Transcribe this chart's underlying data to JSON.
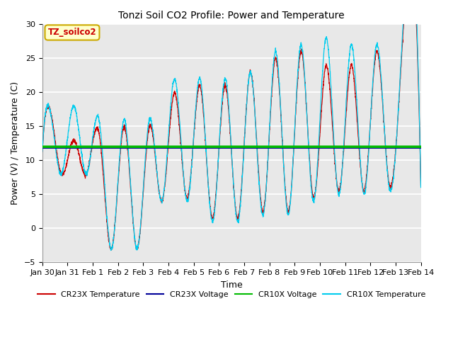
{
  "title": "Tonzi Soil CO2 Profile: Power and Temperature",
  "xlabel": "Time",
  "ylabel": "Power (V) / Temperature (C)",
  "ylim": [
    -5,
    30
  ],
  "xlim_days": [
    0,
    15
  ],
  "background_color": "#ffffff",
  "plot_bg_color": "#e8e8e8",
  "grid_color": "#ffffff",
  "annotation_text": "TZ_soilco2",
  "annotation_bg": "#ffffcc",
  "annotation_border": "#ccaa00",
  "cr23x_temp_color": "#cc0000",
  "cr23x_volt_color": "#000099",
  "cr10x_volt_color": "#00bb00",
  "cr10x_temp_color": "#00ccee",
  "cr10x_volt_level": 12.0,
  "cr23x_volt_level": 11.85,
  "legend_labels": [
    "CR23X Temperature",
    "CR23X Voltage",
    "CR10X Voltage",
    "CR10X Temperature"
  ],
  "x_tick_labels": [
    "Jan 30",
    "Jan 31",
    "Feb 1",
    "Feb 2",
    "Feb 3",
    "Feb 4",
    "Feb 5",
    "Feb 6",
    "Feb 7",
    "Feb 8",
    "Feb 9",
    "Feb 10",
    "Feb 11",
    "Feb 12",
    "Feb 13",
    "Feb 14"
  ],
  "x_tick_positions": [
    0,
    1,
    2,
    3,
    4,
    5,
    6,
    7,
    8,
    9,
    10,
    11,
    12,
    13,
    14,
    15
  ],
  "figwidth": 6.4,
  "figheight": 4.8,
  "dpi": 100
}
